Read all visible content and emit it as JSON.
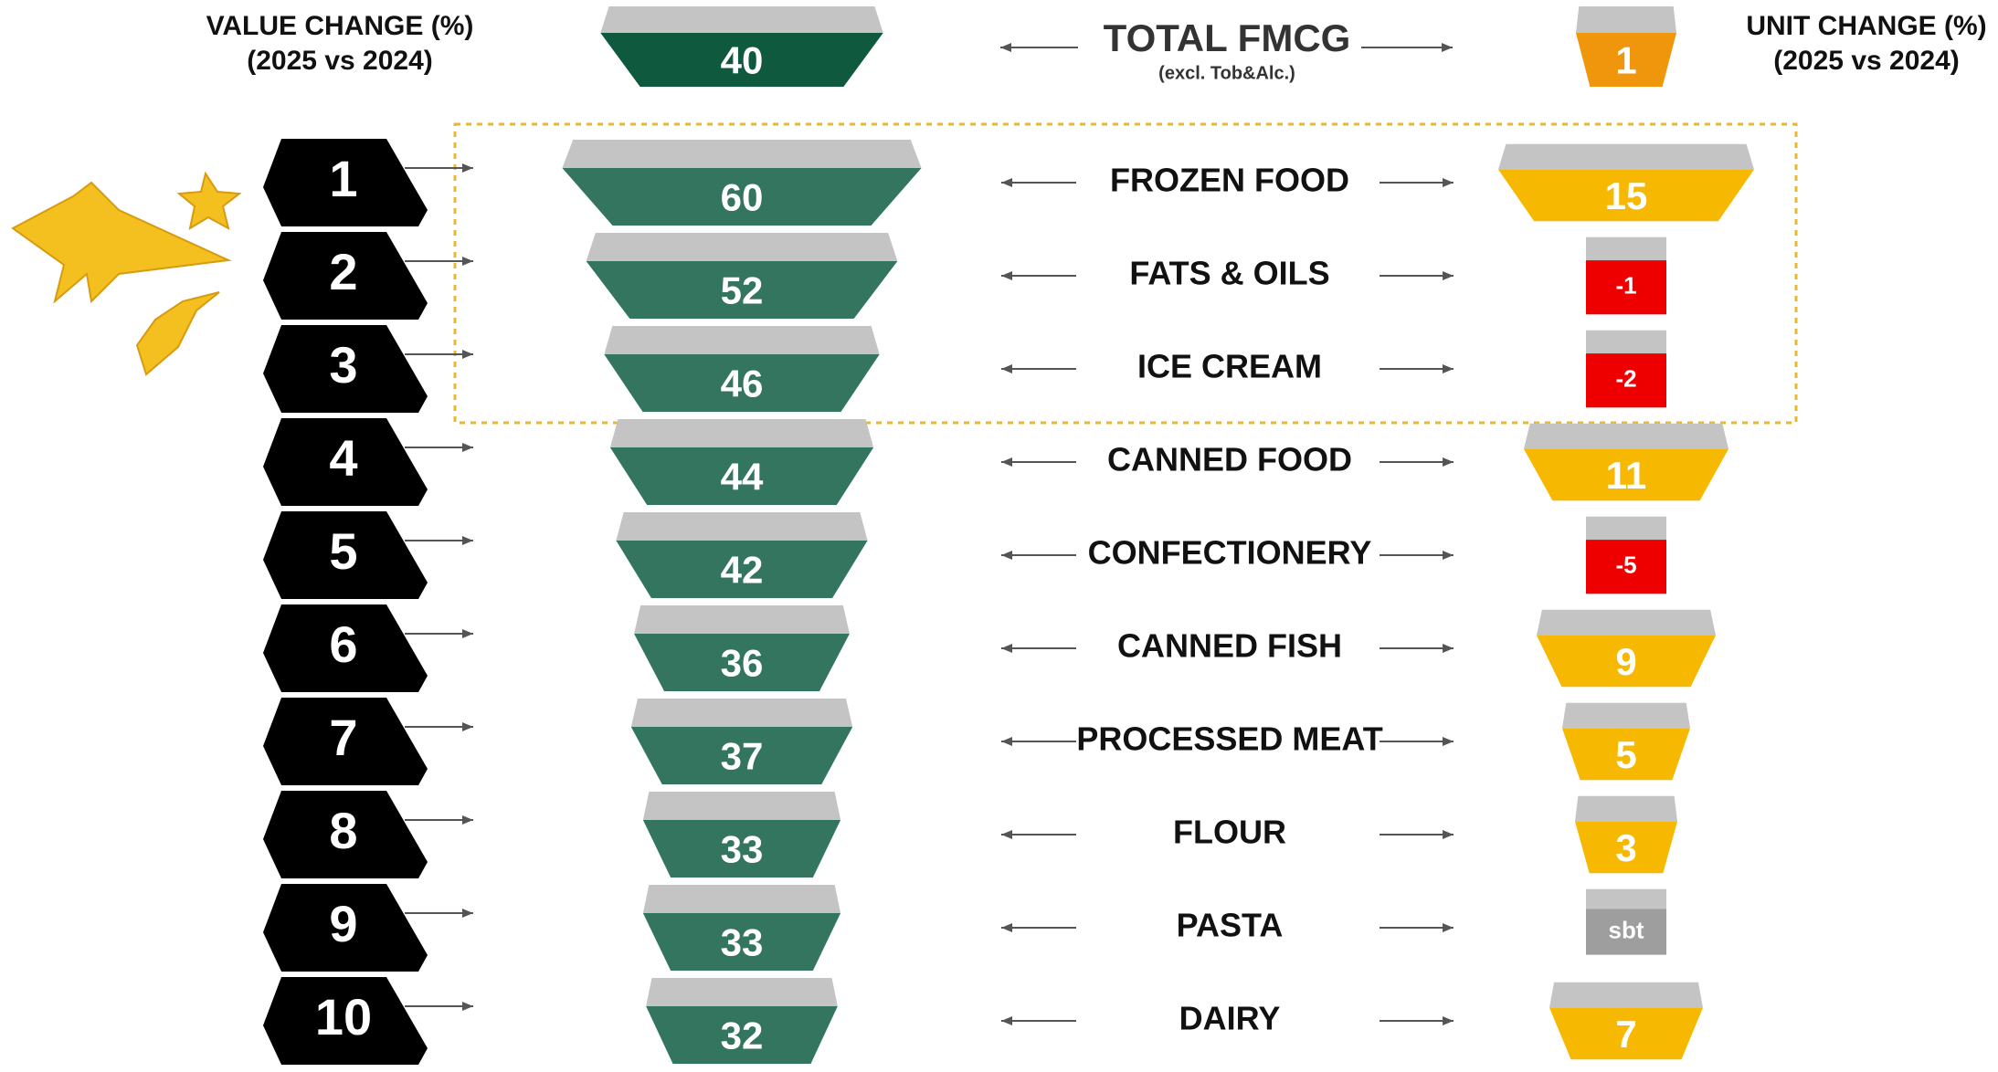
{
  "header": {
    "value_title": "VALUE CHANGE (%)",
    "value_period": "(2025 vs 2024)",
    "unit_title": "UNIT CHANGE (%)",
    "unit_period": "(2025 vs 2024)"
  },
  "total": {
    "label": "TOTAL FMCG",
    "note": "(excl. Tob&Alc.)",
    "value_change": 40,
    "unit_change": 1
  },
  "rows": [
    {
      "rank": 1,
      "name": "FROZEN FOOD",
      "value_change": 60,
      "unit_change": 15
    },
    {
      "rank": 2,
      "name": "FATS & OILS",
      "value_change": 52,
      "unit_change": -1
    },
    {
      "rank": 3,
      "name": "ICE CREAM",
      "value_change": 46,
      "unit_change": -2
    },
    {
      "rank": 4,
      "name": "CANNED FOOD",
      "value_change": 44,
      "unit_change": 11
    },
    {
      "rank": 5,
      "name": "CONFECTIONERY",
      "value_change": 42,
      "unit_change": -5
    },
    {
      "rank": 6,
      "name": "CANNED FISH",
      "value_change": 36,
      "unit_change": 9
    },
    {
      "rank": 7,
      "name": "PROCESSED MEAT",
      "value_change": 37,
      "unit_change": 5
    },
    {
      "rank": 8,
      "name": "FLOUR",
      "value_change": 33,
      "unit_change": 3
    },
    {
      "rank": 9,
      "name": "PASTA",
      "value_change": 33,
      "unit_change": "sbt"
    },
    {
      "rank": 10,
      "name": "DAIRY",
      "value_change": 32,
      "unit_change": 7
    }
  ]
}
